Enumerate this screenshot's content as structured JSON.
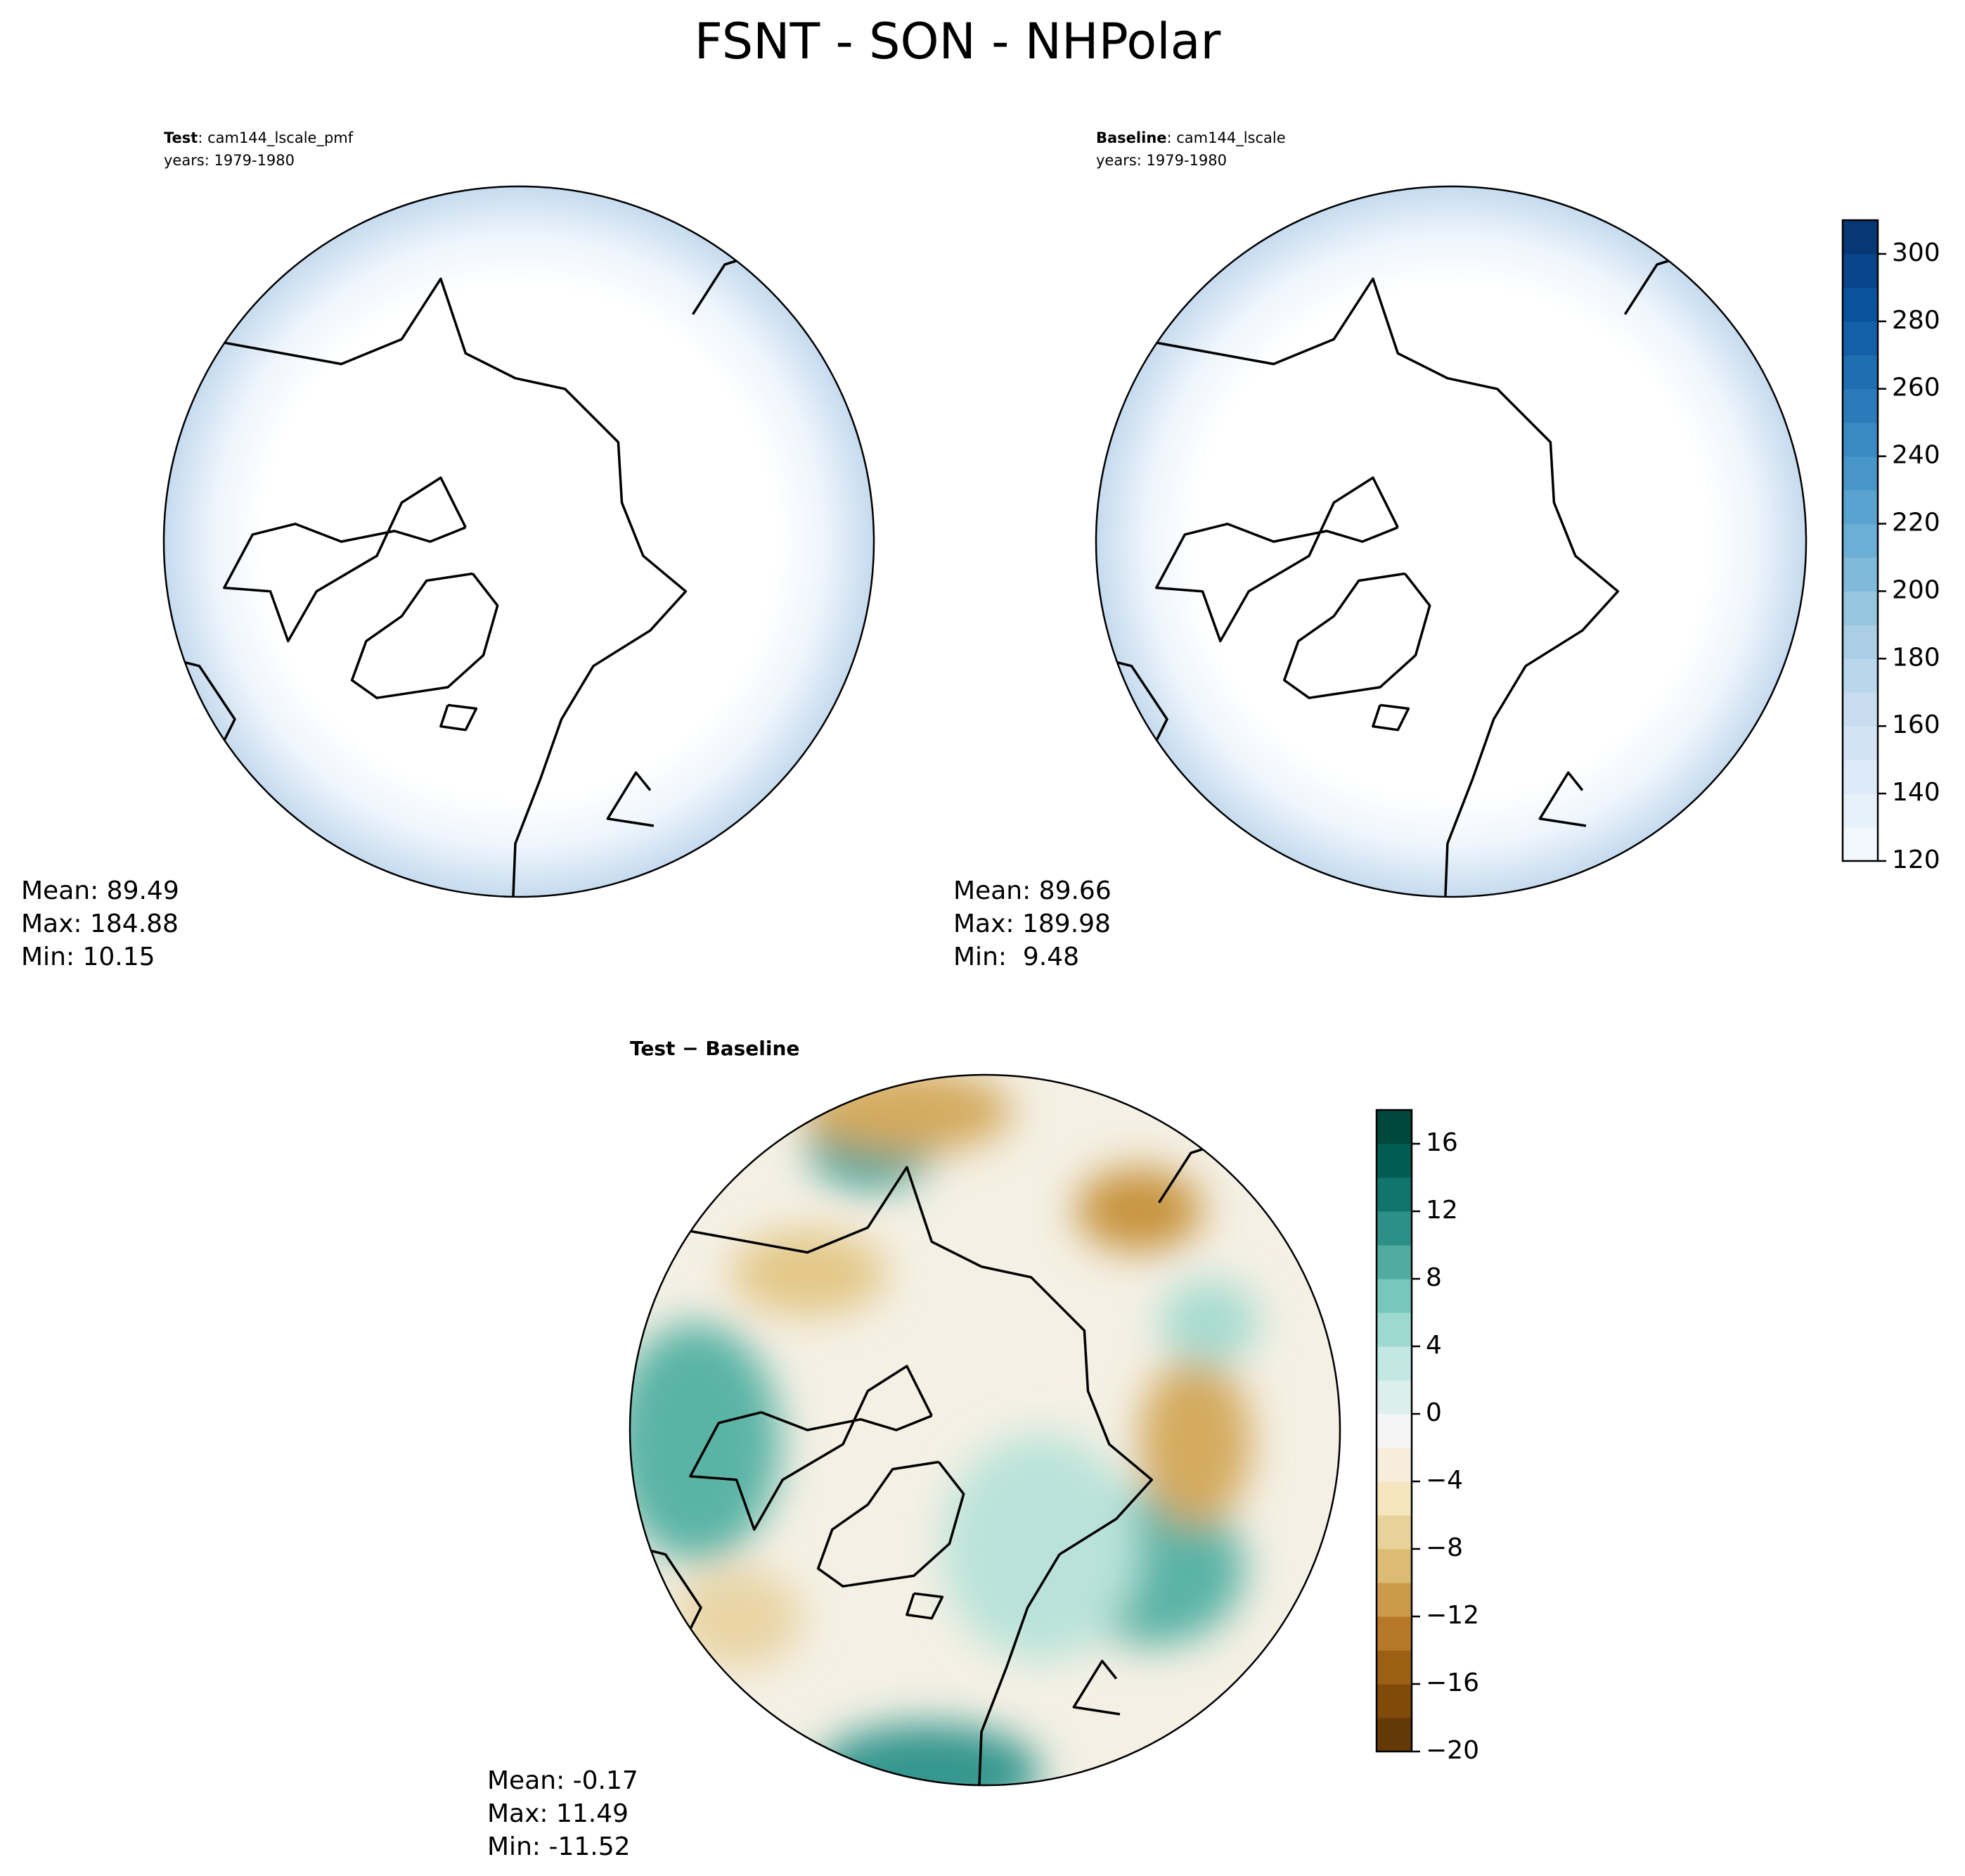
{
  "title": "FSNT - SON - NHPolar",
  "panels": [
    {
      "label": "Test",
      "text": ": cam144_lscale_pmf",
      "years": "years: 1979-1980",
      "stats": [
        "Mean: 89.49",
        "Max: 184.88",
        "Min: 10.15"
      ]
    },
    {
      "label": "Baseline",
      "text": ": cam144_lscale",
      "years": "years: 1979-1980",
      "stats": [
        "Mean: 89.66",
        "Max: 189.98",
        "Min:  9.48"
      ]
    },
    {
      "label": "Test − Baseline",
      "stats": [
        "Mean: -0.17",
        "Max: 11.49",
        "Min: -11.52"
      ]
    }
  ],
  "colorbars": [
    {
      "colormap": "Blues",
      "lim": [
        120,
        310
      ],
      "step": 10,
      "ticks": [
        120,
        140,
        160,
        180,
        200,
        220,
        240,
        260,
        280,
        300
      ]
    },
    {
      "colormap": "BrBG",
      "lim": [
        -20,
        18
      ],
      "step": 2,
      "ticks": [
        {
          "value": -20,
          "label": "−20"
        },
        {
          "value": -16,
          "label": "−16"
        },
        {
          "value": -12,
          "label": "−12"
        },
        {
          "value": -8,
          "label": "−8"
        },
        {
          "value": -4,
          "label": "−4"
        },
        0,
        4,
        8,
        12,
        16
      ]
    }
  ]
}
